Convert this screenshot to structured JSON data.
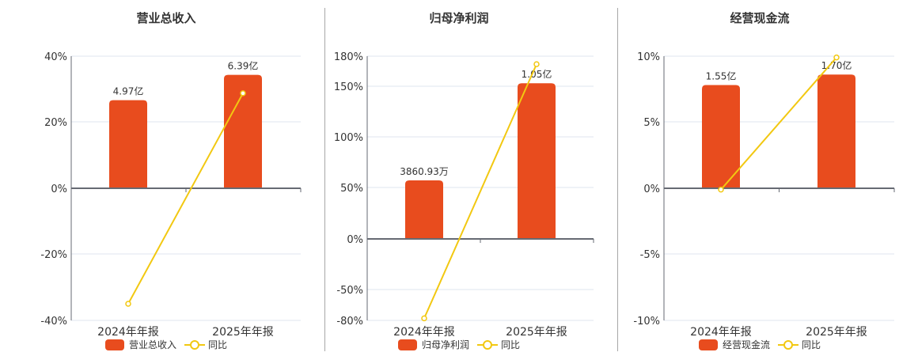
{
  "colors": {
    "bar": "#e84c1e",
    "line": "#f2c811",
    "grid": "#dfe5ef",
    "axis": "#666a73",
    "text": "#333333"
  },
  "panels": [
    {
      "title": "营业总收入",
      "legend_bar": "营业总收入",
      "legend_line": "同比"
    },
    {
      "title": "归母净利润",
      "legend_bar": "归母净利润",
      "legend_line": "同比"
    },
    {
      "title": "经营现金流",
      "legend_bar": "经营现金流",
      "legend_line": "同比"
    }
  ],
  "chart_data": [
    {
      "type": "bar+line",
      "title": "营业总收入",
      "categories": [
        "2024年年报",
        "2025年年报"
      ],
      "series": [
        {
          "name": "营业总收入",
          "type": "bar",
          "labels": [
            "4.97亿",
            "6.39亿"
          ],
          "values_axis_pct": [
            26.6,
            34.3
          ]
        },
        {
          "name": "同比",
          "type": "line",
          "values": [
            -35.0,
            28.7
          ]
        }
      ],
      "yticks": [
        "40%",
        "20%",
        "0%",
        "-20%",
        "-40%"
      ],
      "ylim": [
        -40,
        40
      ],
      "grid": true,
      "legend_position": "bottom"
    },
    {
      "type": "bar+line",
      "title": "归母净利润",
      "categories": [
        "2024年年报",
        "2025年年报"
      ],
      "series": [
        {
          "name": "归母净利润",
          "type": "bar",
          "labels": [
            "3860.93万",
            "1.05亿"
          ],
          "values_axis_pct": [
            57,
            153
          ]
        },
        {
          "name": "同比",
          "type": "line",
          "values": [
            -78,
            172
          ]
        }
      ],
      "yticks": [
        "180%",
        "150%",
        "100%",
        "50%",
        "0%",
        "-50%",
        "-80%"
      ],
      "ylim": [
        -80,
        180
      ],
      "grid": true,
      "legend_position": "bottom"
    },
    {
      "type": "bar+line",
      "title": "经营现金流",
      "categories": [
        "2024年年报",
        "2025年年报"
      ],
      "series": [
        {
          "name": "经营现金流",
          "type": "bar",
          "labels": [
            "1.55亿",
            "1.70亿"
          ],
          "values_axis_pct": [
            7.8,
            8.6
          ]
        },
        {
          "name": "同比",
          "type": "line",
          "values": [
            -0.1,
            9.9
          ]
        }
      ],
      "yticks": [
        "10%",
        "5%",
        "0%",
        "-5%",
        "-10%"
      ],
      "ylim": [
        -10,
        10
      ],
      "grid": true,
      "legend_position": "bottom"
    }
  ]
}
